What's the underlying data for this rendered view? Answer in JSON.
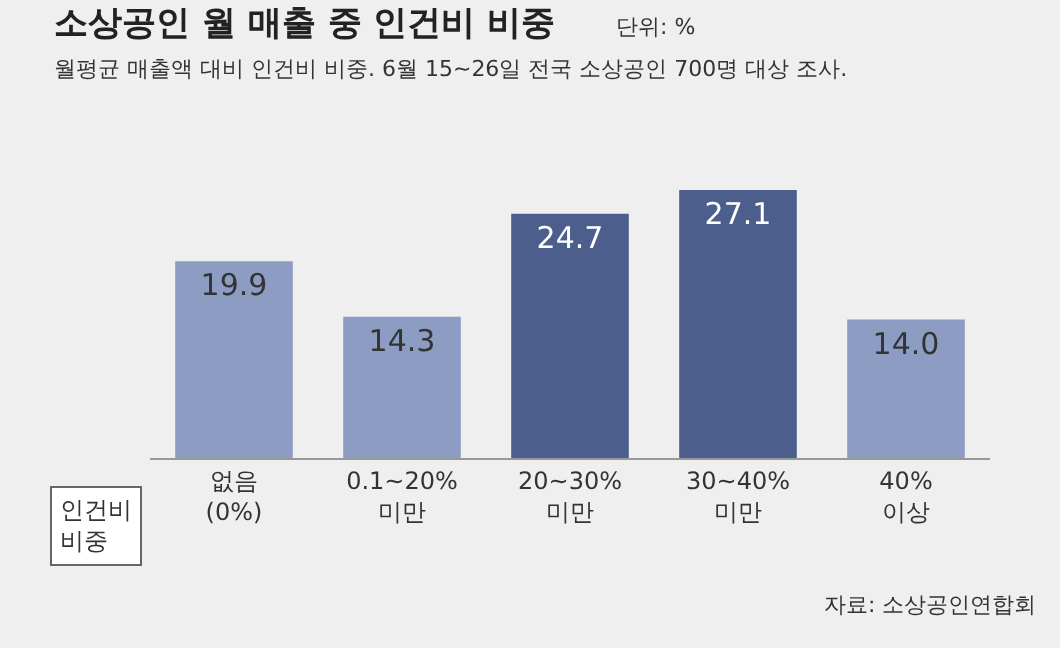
{
  "chart_data": {
    "type": "bar",
    "title": "소상공인 월 매출 중 인건비 비중",
    "subtitle": "월평균 매출액 대비 인건비 비중. 6월 15~26일 전국 소상공인 700명 대상 조사.",
    "xlabel": "인건비\n비중",
    "categories": [
      "없음\n(0%)",
      "0.1~20%\n미만",
      "20~30%\n미만",
      "30~40%\n미만",
      "40%\n이상"
    ],
    "values": [
      19.9,
      14.3,
      24.7,
      27.1,
      14.0
    ],
    "colors": [
      "#8d9cc2",
      "#8d9cc2",
      "#4b5e8c",
      "#4b5e8c",
      "#8d9cc2"
    ],
    "value_labels": [
      "19.9",
      "14.3",
      "24.7",
      "27.1",
      "14.0"
    ],
    "annotations": [
      "단위: %",
      "자료: 소상공인연합회"
    ]
  }
}
